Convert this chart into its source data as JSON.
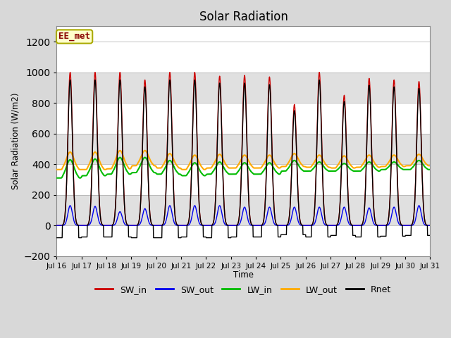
{
  "title": "Solar Radiation",
  "ylabel": "Solar Radiation (W/m2)",
  "xlabel": "Time",
  "annotation": "EE_met",
  "ylim": [
    -200,
    1300
  ],
  "yticks": [
    -200,
    0,
    200,
    400,
    600,
    800,
    1000,
    1200
  ],
  "days": 15,
  "start_day": 16,
  "points_per_day": 96,
  "sw_in_peaks": [
    1000,
    1000,
    1000,
    950,
    1000,
    1000,
    975,
    980,
    970,
    790,
    1000,
    850,
    960,
    950,
    940
  ],
  "sw_out_peaks": [
    130,
    125,
    90,
    110,
    130,
    130,
    130,
    120,
    120,
    120,
    120,
    120,
    115,
    120,
    130
  ],
  "lw_in_base": [
    310,
    325,
    335,
    345,
    335,
    325,
    335,
    335,
    335,
    355,
    355,
    355,
    355,
    365,
    365
  ],
  "lw_in_peak": [
    430,
    435,
    445,
    445,
    425,
    410,
    415,
    410,
    410,
    425,
    415,
    405,
    415,
    415,
    425
  ],
  "lw_out_base": [
    365,
    365,
    370,
    390,
    375,
    365,
    375,
    375,
    375,
    385,
    380,
    375,
    380,
    385,
    390
  ],
  "lw_out_peak": [
    480,
    480,
    490,
    490,
    470,
    460,
    465,
    460,
    460,
    470,
    460,
    455,
    460,
    460,
    465
  ],
  "rnet_min": [
    -80,
    -75,
    -75,
    -80,
    -80,
    -75,
    -80,
    -75,
    -75,
    -60,
    -75,
    -65,
    -75,
    -70,
    -65
  ],
  "rnet_peak": [
    950,
    950,
    950,
    905,
    950,
    950,
    930,
    930,
    920,
    750,
    950,
    810,
    915,
    905,
    895
  ],
  "sw_in_color": "#cc0000",
  "sw_out_color": "#0000ee",
  "lw_in_color": "#00bb00",
  "lw_out_color": "#ffaa00",
  "rnet_color": "#000000",
  "band_colors": [
    "#ffffff",
    "#e0e0e0"
  ],
  "fig_bg": "#d8d8d8",
  "annotation_box_color": "#ffffcc",
  "annotation_text_color": "#880000",
  "annotation_border_color": "#aaaa00"
}
